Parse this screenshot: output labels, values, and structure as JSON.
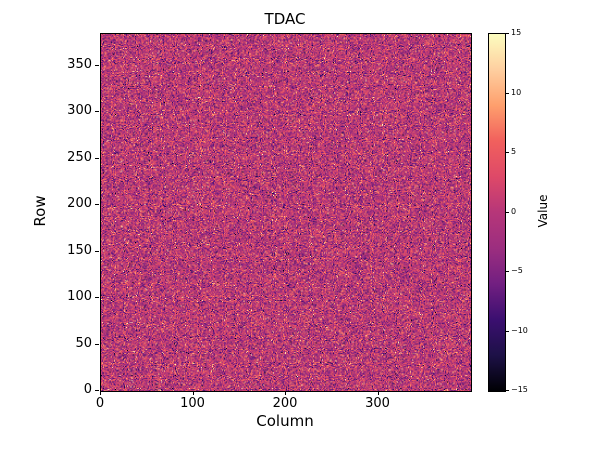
{
  "chart_data": {
    "type": "heatmap",
    "title": "TDAC",
    "xlabel": "Column",
    "ylabel": "Row",
    "x_range": [
      0,
      400
    ],
    "y_range": [
      0,
      384
    ],
    "x_ticks": [
      0,
      100,
      200,
      300
    ],
    "x_tick_labels": [
      "0",
      "100",
      "200",
      "300"
    ],
    "y_ticks": [
      0,
      50,
      100,
      150,
      200,
      250,
      300,
      350
    ],
    "y_tick_labels": [
      "0",
      "50",
      "100",
      "150",
      "200",
      "250",
      "300",
      "350"
    ],
    "grid": {
      "cols": 400,
      "rows": 384
    },
    "values_summary": {
      "distribution": "gaussian-noise",
      "mean": 0,
      "stddev": 4.5,
      "clip": [
        -15,
        15
      ],
      "seed": 20240615
    },
    "colorbar": {
      "label": "Value",
      "min": -15,
      "max": 15,
      "ticks": [
        15,
        10,
        5,
        0,
        -5,
        -10,
        -15
      ],
      "tick_labels": [
        "15",
        "10",
        "5",
        "0",
        "−5",
        "−10",
        "−15"
      ],
      "colormap": "magma",
      "stops": [
        [
          0.0,
          "#000004"
        ],
        [
          0.1,
          "#1d1147"
        ],
        [
          0.2,
          "#3b0f70"
        ],
        [
          0.3,
          "#721f81"
        ],
        [
          0.4,
          "#9c2e7f"
        ],
        [
          0.5,
          "#b63679"
        ],
        [
          0.6,
          "#de4968"
        ],
        [
          0.7,
          "#f1605d"
        ],
        [
          0.8,
          "#fe9f6d"
        ],
        [
          0.9,
          "#fecfa0"
        ],
        [
          1.0,
          "#fcfdbf"
        ]
      ]
    }
  }
}
